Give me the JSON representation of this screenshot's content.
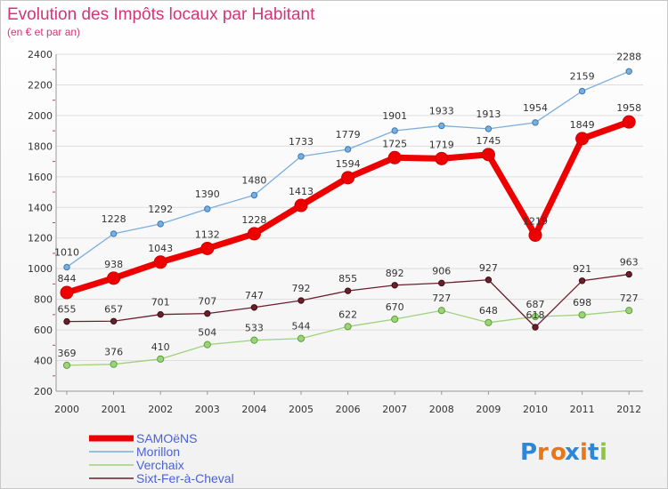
{
  "chart_data": {
    "type": "line",
    "title": "Evolution des Impôts locaux par Habitant",
    "subtitle": "(en € et par an)",
    "xlabel": "",
    "ylabel": "",
    "ylim": [
      200,
      2400
    ],
    "yticks": [
      200,
      400,
      600,
      800,
      1000,
      1200,
      1400,
      1600,
      1800,
      2000,
      2200,
      2400
    ],
    "categories": [
      "2000",
      "2001",
      "2002",
      "2003",
      "2004",
      "2005",
      "2006",
      "2007",
      "2008",
      "2009",
      "2010",
      "2011",
      "2012"
    ],
    "series": [
      {
        "name": "SAMOëNS",
        "color": "#ee0000",
        "values": [
          844,
          938,
          1043,
          1132,
          1228,
          1413,
          1594,
          1725,
          1719,
          1745,
          1219,
          1849,
          1958
        ]
      },
      {
        "name": "Morillon",
        "color": "#7aaedc",
        "values": [
          1010,
          1228,
          1292,
          1390,
          1480,
          1733,
          1779,
          1901,
          1933,
          1913,
          1954,
          2159,
          2288
        ]
      },
      {
        "name": "Verchaix",
        "color": "#9ed27a",
        "values": [
          369,
          376,
          410,
          504,
          533,
          544,
          622,
          670,
          727,
          648,
          687,
          698,
          727
        ]
      },
      {
        "name": "Sixt-Fer-à-Cheval",
        "color": "#6b1f2a",
        "values": [
          655,
          657,
          701,
          707,
          747,
          792,
          855,
          892,
          906,
          927,
          618,
          921,
          963
        ]
      }
    ],
    "legend_position": "bottom-left"
  },
  "branding": {
    "logo_letters": [
      "P",
      "r",
      "o",
      "x",
      "i",
      "t",
      "i"
    ],
    "logo_colors": [
      "#2e86d6",
      "#e8761a",
      "#e8761a",
      "#2e86d6",
      "#e8761a",
      "#2e86d6",
      "#8cc63f"
    ]
  }
}
